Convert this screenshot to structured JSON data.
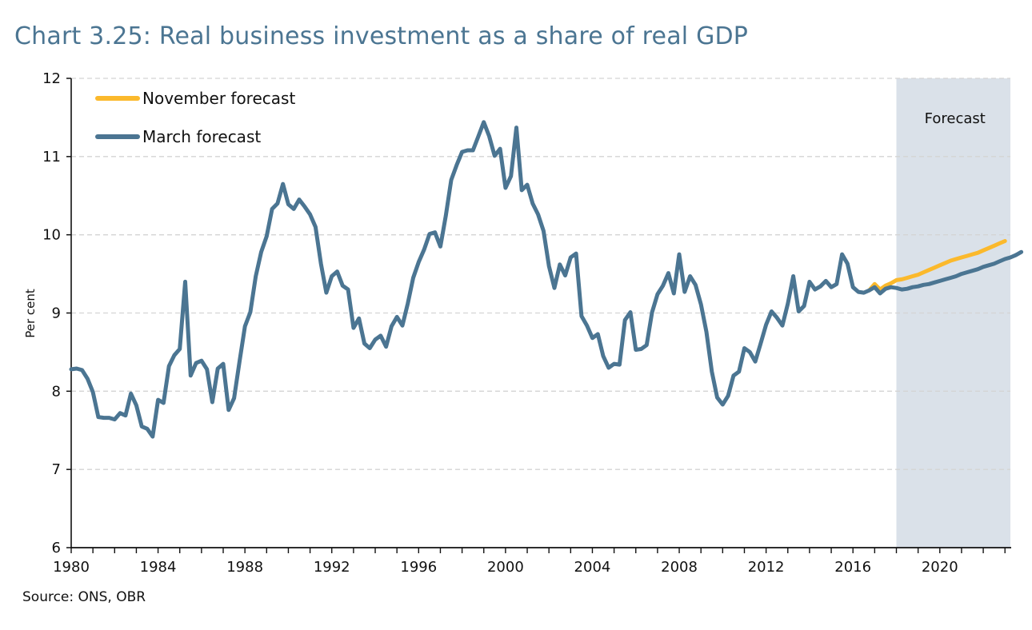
{
  "title": "Chart 3.25: Real business investment as a share of real GDP",
  "source": "Source: ONS, OBR",
  "chart_data": {
    "type": "line",
    "title": "Chart 3.25: Real business investment as a share of real GDP",
    "xlabel": "",
    "ylabel": "Per cent",
    "ylim": [
      6,
      12
    ],
    "xlim": [
      1980,
      2023.25
    ],
    "yticks": [
      "6",
      "7",
      "8",
      "9",
      "10",
      "11",
      "12"
    ],
    "xticks": [
      "1980",
      "1984",
      "1988",
      "1992",
      "1996",
      "2000",
      "2004",
      "2008",
      "2012",
      "2016",
      "2020"
    ],
    "grid": "horizontal dashed",
    "legend_position": "top-left",
    "frequency": "quarterly",
    "x_start": 1980,
    "x_step": 0.25,
    "forecast_region": {
      "label": "Forecast",
      "start": 2018.0,
      "end": 2023.25,
      "color": "#dae1e9"
    },
    "series": [
      {
        "name": "November forecast",
        "color": "#fbb92c",
        "x_start": 2016.75,
        "values": [
          9.29,
          9.37,
          9.3,
          9.35,
          9.38,
          9.42,
          9.43,
          9.45,
          9.47,
          9.49,
          9.52,
          9.55,
          9.58,
          9.61,
          9.64,
          9.67,
          9.69,
          9.71,
          9.73,
          9.75,
          9.77,
          9.8,
          9.83,
          9.86,
          9.89,
          9.92
        ]
      },
      {
        "name": "March forecast",
        "color": "#4b7592",
        "x_start": 1980,
        "values": [
          8.28,
          8.29,
          8.27,
          8.16,
          7.99,
          7.67,
          7.66,
          7.66,
          7.64,
          7.72,
          7.69,
          7.97,
          7.82,
          7.55,
          7.52,
          7.42,
          7.89,
          7.85,
          8.32,
          8.46,
          8.54,
          9.4,
          8.2,
          8.36,
          8.39,
          8.28,
          7.86,
          8.29,
          8.35,
          7.76,
          7.91,
          8.38,
          8.83,
          9.01,
          9.47,
          9.78,
          9.98,
          10.33,
          10.4,
          10.65,
          10.39,
          10.33,
          10.45,
          10.36,
          10.26,
          10.1,
          9.63,
          9.26,
          9.47,
          9.53,
          9.35,
          9.3,
          8.81,
          8.93,
          8.61,
          8.55,
          8.66,
          8.71,
          8.57,
          8.83,
          8.95,
          8.84,
          9.12,
          9.45,
          9.65,
          9.81,
          10.01,
          10.03,
          9.85,
          10.24,
          10.7,
          10.89,
          11.06,
          11.08,
          11.08,
          11.26,
          11.44,
          11.26,
          11.01,
          11.1,
          10.6,
          10.75,
          11.37,
          10.57,
          10.64,
          10.4,
          10.26,
          10.05,
          9.6,
          9.32,
          9.62,
          9.48,
          9.71,
          9.76,
          8.96,
          8.84,
          8.68,
          8.73,
          8.45,
          8.3,
          8.35,
          8.34,
          8.91,
          9.01,
          8.53,
          8.54,
          8.59,
          9.01,
          9.24,
          9.35,
          9.51,
          9.25,
          9.75,
          9.27,
          9.47,
          9.36,
          9.11,
          8.76,
          8.25,
          7.92,
          7.83,
          7.94,
          8.2,
          8.25,
          8.55,
          8.5,
          8.38,
          8.61,
          8.85,
          9.02,
          8.94,
          8.84,
          9.12,
          9.47,
          9.02,
          9.09,
          9.4,
          9.3,
          9.34,
          9.41,
          9.33,
          9.37,
          9.75,
          9.63,
          9.33,
          9.27,
          9.26,
          9.29,
          9.33,
          9.25,
          9.31,
          9.33,
          9.32,
          9.3,
          9.31,
          9.33,
          9.34,
          9.36,
          9.37,
          9.39,
          9.41,
          9.43,
          9.45,
          9.47,
          9.5,
          9.52,
          9.54,
          9.56,
          9.59,
          9.61,
          9.63,
          9.66,
          9.69,
          9.71,
          9.74,
          9.78
        ]
      }
    ]
  }
}
